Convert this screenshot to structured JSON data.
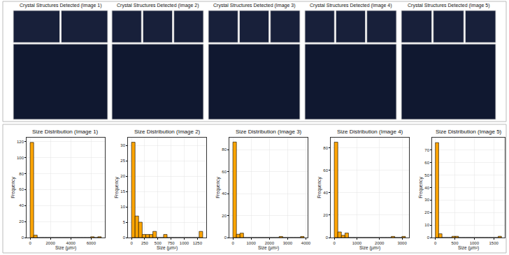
{
  "image_panels": [
    {
      "title": "Crystal Structures Detected (Image 1)"
    },
    {
      "title": "Crystal Structures Detected (Image 2)"
    },
    {
      "title": "Crystal Structures Detected (Image 3)"
    },
    {
      "title": "Crystal Structures Detected (Image 4)"
    },
    {
      "title": "Crystal Structures Detected (Image 5)"
    }
  ],
  "chart_data": [
    {
      "type": "histogram",
      "title": "Size Distribution (Image 1)",
      "xlabel": "Size (µm²)",
      "ylabel": "Frequency",
      "bins": [
        0,
        350,
        700,
        1050,
        1400,
        1750,
        2100,
        2450,
        2800,
        3150,
        3500,
        3850,
        4200,
        4550,
        4900,
        5250,
        5600,
        5950,
        6300,
        6650,
        7000
      ],
      "values": [
        119,
        3,
        0,
        0,
        0,
        0,
        0,
        0,
        0,
        0,
        0,
        0,
        0,
        0,
        0,
        0,
        0,
        1,
        0,
        1
      ],
      "color": "#ffa500",
      "xlim": [
        -350,
        7350
      ],
      "ylim": [
        0,
        125
      ],
      "xticks": [
        0,
        2000,
        4000,
        6000
      ],
      "yticks": [
        0,
        20,
        40,
        60,
        80,
        100,
        120
      ],
      "grid": true
    },
    {
      "type": "histogram",
      "title": "Size Distribution (Image 2)",
      "xlabel": "Size (µm²)",
      "ylabel": "Frequency",
      "bins": [
        0,
        67.5,
        135,
        202.5,
        270,
        337.5,
        405,
        472.5,
        540,
        607.5,
        675,
        742.5,
        810,
        877.5,
        945,
        1012.5,
        1080,
        1147.5,
        1215,
        1282.5,
        1350
      ],
      "values": [
        31,
        7,
        5,
        1,
        1,
        1,
        2,
        0,
        0,
        1,
        0,
        0,
        0,
        0,
        0,
        0,
        0,
        0,
        0,
        2
      ],
      "color": "#ffa500",
      "xlim": [
        -67.5,
        1417.5
      ],
      "ylim": [
        0,
        32.5
      ],
      "xticks": [
        0,
        250,
        500,
        750,
        1000,
        1250
      ],
      "yticks": [
        0,
        5,
        10,
        15,
        20,
        25,
        30
      ],
      "grid": true
    },
    {
      "type": "histogram",
      "title": "Size Distribution (Image 3)",
      "xlabel": "Size (µm²)",
      "ylabel": "Frequency",
      "bins": [
        0,
        195,
        390,
        585,
        780,
        975,
        1170,
        1365,
        1560,
        1755,
        1950,
        2145,
        2340,
        2535,
        2730,
        2925,
        3120,
        3315,
        3510,
        3705,
        3900
      ],
      "values": [
        87,
        3,
        4,
        0,
        0,
        0,
        0,
        0,
        0,
        0,
        0,
        0,
        0,
        1,
        0,
        0,
        0,
        0,
        0,
        1
      ],
      "color": "#ffa500",
      "xlim": [
        -195,
        4095
      ],
      "ylim": [
        0,
        91
      ],
      "xticks": [
        0,
        1000,
        2000,
        3000,
        4000
      ],
      "yticks": [
        0,
        20,
        40,
        60,
        80
      ],
      "grid": true
    },
    {
      "type": "histogram",
      "title": "Size Distribution (Image 4)",
      "xlabel": "Size (µm²)",
      "ylabel": "Frequency",
      "bins": [
        0,
        157.5,
        315,
        472.5,
        630,
        787.5,
        945,
        1102.5,
        1260,
        1417.5,
        1575,
        1732.5,
        1890,
        2047.5,
        2205,
        2362.5,
        2520,
        2677.5,
        2835,
        2992.5,
        3150
      ],
      "values": [
        85,
        5,
        2,
        4,
        0,
        0,
        0,
        0,
        0,
        0,
        0,
        0,
        0,
        0,
        0,
        0,
        1,
        0,
        0,
        1
      ],
      "color": "#ffa500",
      "xlim": [
        -157.5,
        3307.5
      ],
      "ylim": [
        0,
        89
      ],
      "xticks": [
        0,
        1000,
        2000,
        3000
      ],
      "yticks": [
        0,
        20,
        40,
        60,
        80
      ],
      "grid": true
    },
    {
      "type": "histogram",
      "title": "Size Distribution (Image 5)",
      "xlabel": "Size (µm²)",
      "ylabel": "Frequency",
      "bins": [
        0,
        85,
        170,
        255,
        340,
        425,
        510,
        595,
        680,
        765,
        850,
        935,
        1020,
        1105,
        1190,
        1275,
        1360,
        1445,
        1530,
        1615,
        1700
      ],
      "values": [
        76,
        3,
        0,
        0,
        0,
        1,
        1,
        0,
        0,
        0,
        0,
        0,
        0,
        0,
        0,
        0,
        0,
        0,
        0,
        1
      ],
      "color": "#ffa500",
      "xlim": [
        -85,
        1785
      ],
      "ylim": [
        0,
        80
      ],
      "xticks": [
        0,
        500,
        1000,
        1500
      ],
      "yticks": [
        0,
        10,
        20,
        30,
        40,
        50,
        60,
        70
      ],
      "grid": true
    }
  ]
}
